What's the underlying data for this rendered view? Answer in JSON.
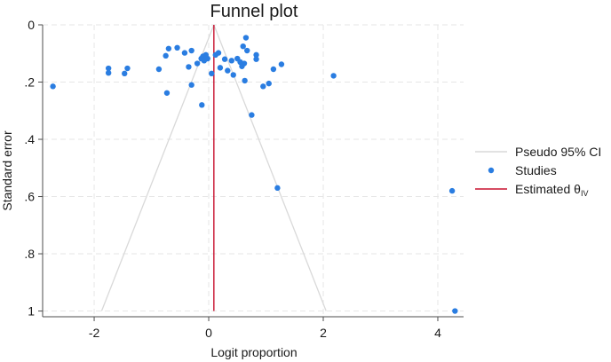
{
  "chart_data": {
    "type": "scatter",
    "title": "Funnel plot",
    "xlabel": "Logit proportion",
    "ylabel": "Standard error",
    "xlim": [
      -2.9,
      4.45
    ],
    "ylim": [
      0,
      1.02
    ],
    "y_reversed": true,
    "grid": true,
    "legend_position": "right",
    "xticks": [
      -2,
      0,
      2,
      4
    ],
    "xtick_labels": [
      "-2",
      "0",
      "2",
      "4"
    ],
    "yticks": [
      0,
      0.2,
      0.4,
      0.6,
      0.8,
      1
    ],
    "ytick_labels": [
      "0",
      ".2",
      ".4",
      ".6",
      ".8",
      "1"
    ],
    "estimated_theta": 0.09,
    "pseudo_ci_z": 1.96,
    "colors": {
      "points": "#2a7de1",
      "ci_lines": "#d9d9d9",
      "estimate_line": "#c8102e",
      "grid": "#e6e6e6",
      "axis": "#4d4d4d"
    },
    "legend": [
      {
        "key": "ci",
        "label": "Pseudo 95% CI"
      },
      {
        "key": "points",
        "label": "Studies"
      },
      {
        "key": "estimate",
        "label": "Estimated θ",
        "subscript": "IV"
      }
    ],
    "series": [
      {
        "name": "Studies",
        "points": [
          {
            "x": -2.72,
            "y": 0.215
          },
          {
            "x": -1.75,
            "y": 0.152
          },
          {
            "x": -1.75,
            "y": 0.168
          },
          {
            "x": -1.47,
            "y": 0.17
          },
          {
            "x": -1.42,
            "y": 0.152
          },
          {
            "x": -0.87,
            "y": 0.155
          },
          {
            "x": -0.75,
            "y": 0.108
          },
          {
            "x": -0.7,
            "y": 0.083
          },
          {
            "x": -0.73,
            "y": 0.238
          },
          {
            "x": -0.55,
            "y": 0.08
          },
          {
            "x": -0.42,
            "y": 0.098
          },
          {
            "x": -0.35,
            "y": 0.147
          },
          {
            "x": -0.3,
            "y": 0.09
          },
          {
            "x": -0.3,
            "y": 0.21
          },
          {
            "x": -0.2,
            "y": 0.135
          },
          {
            "x": -0.13,
            "y": 0.118
          },
          {
            "x": -0.1,
            "y": 0.11
          },
          {
            "x": -0.08,
            "y": 0.125
          },
          {
            "x": -0.05,
            "y": 0.105
          },
          {
            "x": -0.02,
            "y": 0.118
          },
          {
            "x": -0.12,
            "y": 0.28
          },
          {
            "x": 0.05,
            "y": 0.17
          },
          {
            "x": 0.12,
            "y": 0.105
          },
          {
            "x": 0.17,
            "y": 0.098
          },
          {
            "x": 0.2,
            "y": 0.15
          },
          {
            "x": 0.28,
            "y": 0.12
          },
          {
            "x": 0.33,
            "y": 0.16
          },
          {
            "x": 0.4,
            "y": 0.125
          },
          {
            "x": 0.43,
            "y": 0.175
          },
          {
            "x": 0.5,
            "y": 0.118
          },
          {
            "x": 0.55,
            "y": 0.13
          },
          {
            "x": 0.58,
            "y": 0.145
          },
          {
            "x": 0.62,
            "y": 0.135
          },
          {
            "x": 0.6,
            "y": 0.075
          },
          {
            "x": 0.65,
            "y": 0.045
          },
          {
            "x": 0.67,
            "y": 0.09
          },
          {
            "x": 0.63,
            "y": 0.195
          },
          {
            "x": 0.75,
            "y": 0.315
          },
          {
            "x": 0.83,
            "y": 0.105
          },
          {
            "x": 0.83,
            "y": 0.12
          },
          {
            "x": 0.95,
            "y": 0.215
          },
          {
            "x": 1.05,
            "y": 0.205
          },
          {
            "x": 1.13,
            "y": 0.155
          },
          {
            "x": 1.27,
            "y": 0.138
          },
          {
            "x": 1.2,
            "y": 0.57
          },
          {
            "x": 2.18,
            "y": 0.178
          },
          {
            "x": 4.25,
            "y": 0.58
          },
          {
            "x": 4.3,
            "y": 1.0
          }
        ]
      }
    ]
  }
}
